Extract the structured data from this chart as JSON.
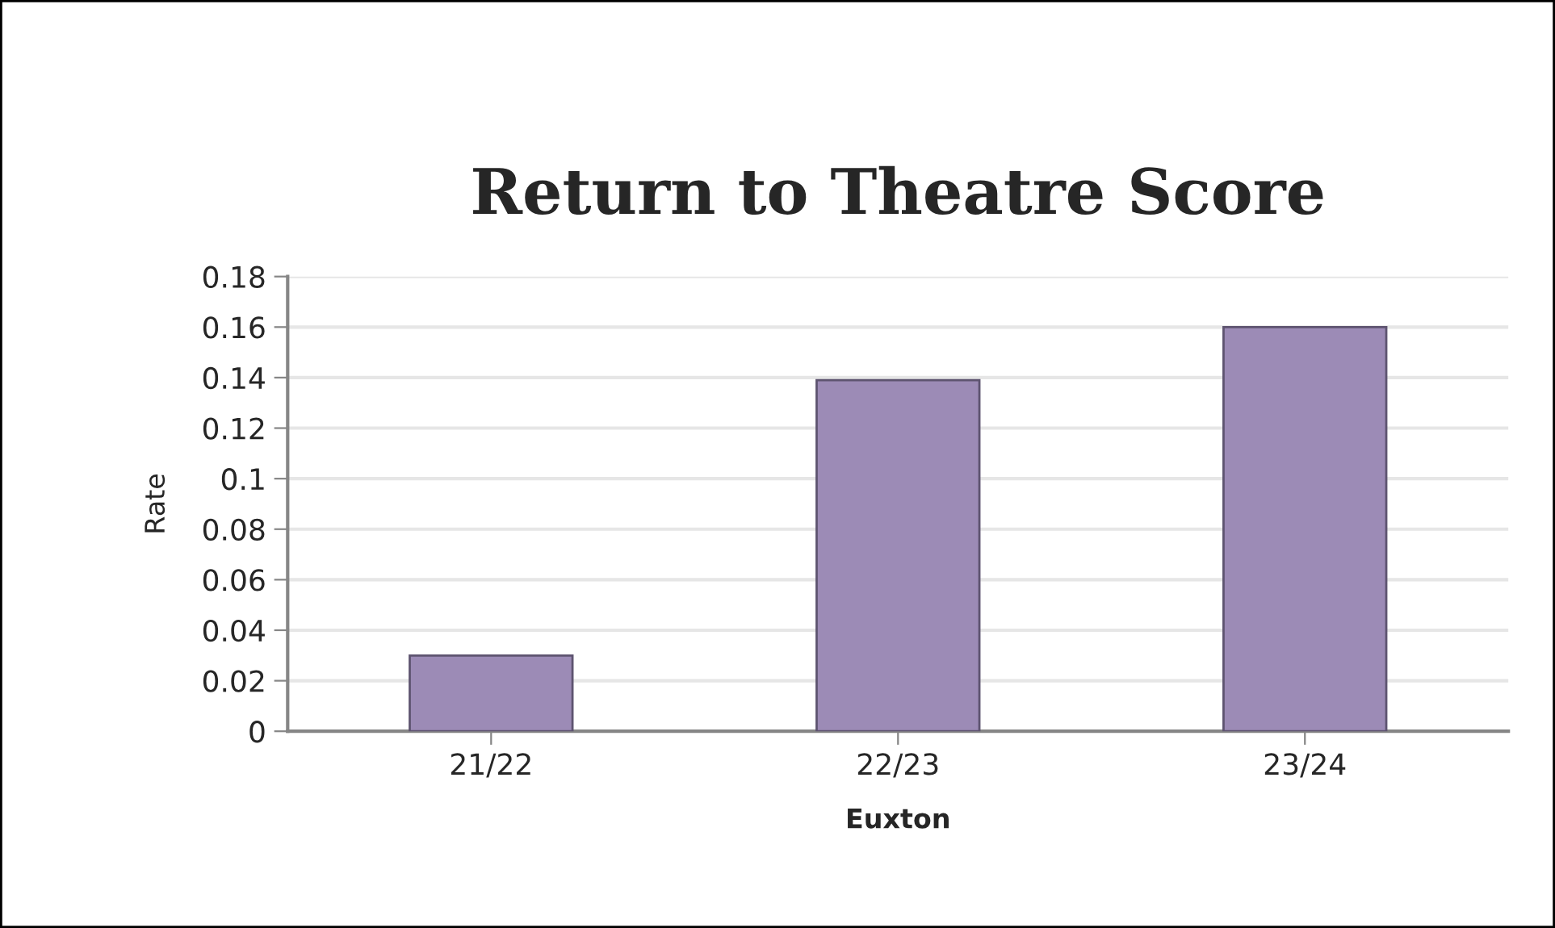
{
  "chart_data": {
    "type": "bar",
    "title": "Return to Theatre Score",
    "xlabel": "Euxton",
    "ylabel": "Rate",
    "categories": [
      "21/22",
      "22/23",
      "23/24"
    ],
    "values": [
      0.03,
      0.139,
      0.16
    ],
    "color": "#9c8bb6",
    "ylim": [
      0,
      0.18
    ],
    "yticks": [
      {
        "value": 0,
        "label": "0"
      },
      {
        "value": 0.02,
        "label": "0.02"
      },
      {
        "value": 0.04,
        "label": "0.04"
      },
      {
        "value": 0.06,
        "label": "0.06"
      },
      {
        "value": 0.08,
        "label": "0.08"
      },
      {
        "value": 0.1,
        "label": "0.1"
      },
      {
        "value": 0.12,
        "label": "0.12"
      },
      {
        "value": 0.14,
        "label": "0.14"
      },
      {
        "value": 0.16,
        "label": "0.16"
      },
      {
        "value": 0.18,
        "label": "0.18"
      }
    ],
    "grid": "y"
  }
}
